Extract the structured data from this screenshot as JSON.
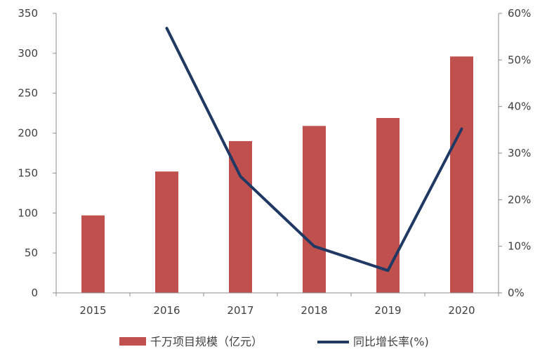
{
  "chart_data": {
    "type": "bar+line",
    "title": "",
    "categories": [
      "2015",
      "2016",
      "2017",
      "2018",
      "2019",
      "2020"
    ],
    "series": [
      {
        "name": "千万项目规模（亿元）",
        "type": "bar",
        "axis": "left",
        "color": "#c0504d",
        "values": [
          97,
          152,
          190,
          209,
          219,
          296
        ]
      },
      {
        "name": "同比增长率(%)",
        "type": "line",
        "axis": "right",
        "color": "#1f3864",
        "values": [
          null,
          56.8,
          25.0,
          10.0,
          4.8,
          35.2
        ]
      }
    ],
    "y_left": {
      "min": 0,
      "max": 350,
      "step": 50,
      "ticks": [
        "0",
        "50",
        "100",
        "150",
        "200",
        "250",
        "300",
        "350"
      ]
    },
    "y_right": {
      "min": 0,
      "max": 60,
      "step": 10,
      "ticks": [
        "0%",
        "10%",
        "20%",
        "30%",
        "40%",
        "50%",
        "60%"
      ]
    },
    "grid": false,
    "legend_position": "bottom"
  }
}
